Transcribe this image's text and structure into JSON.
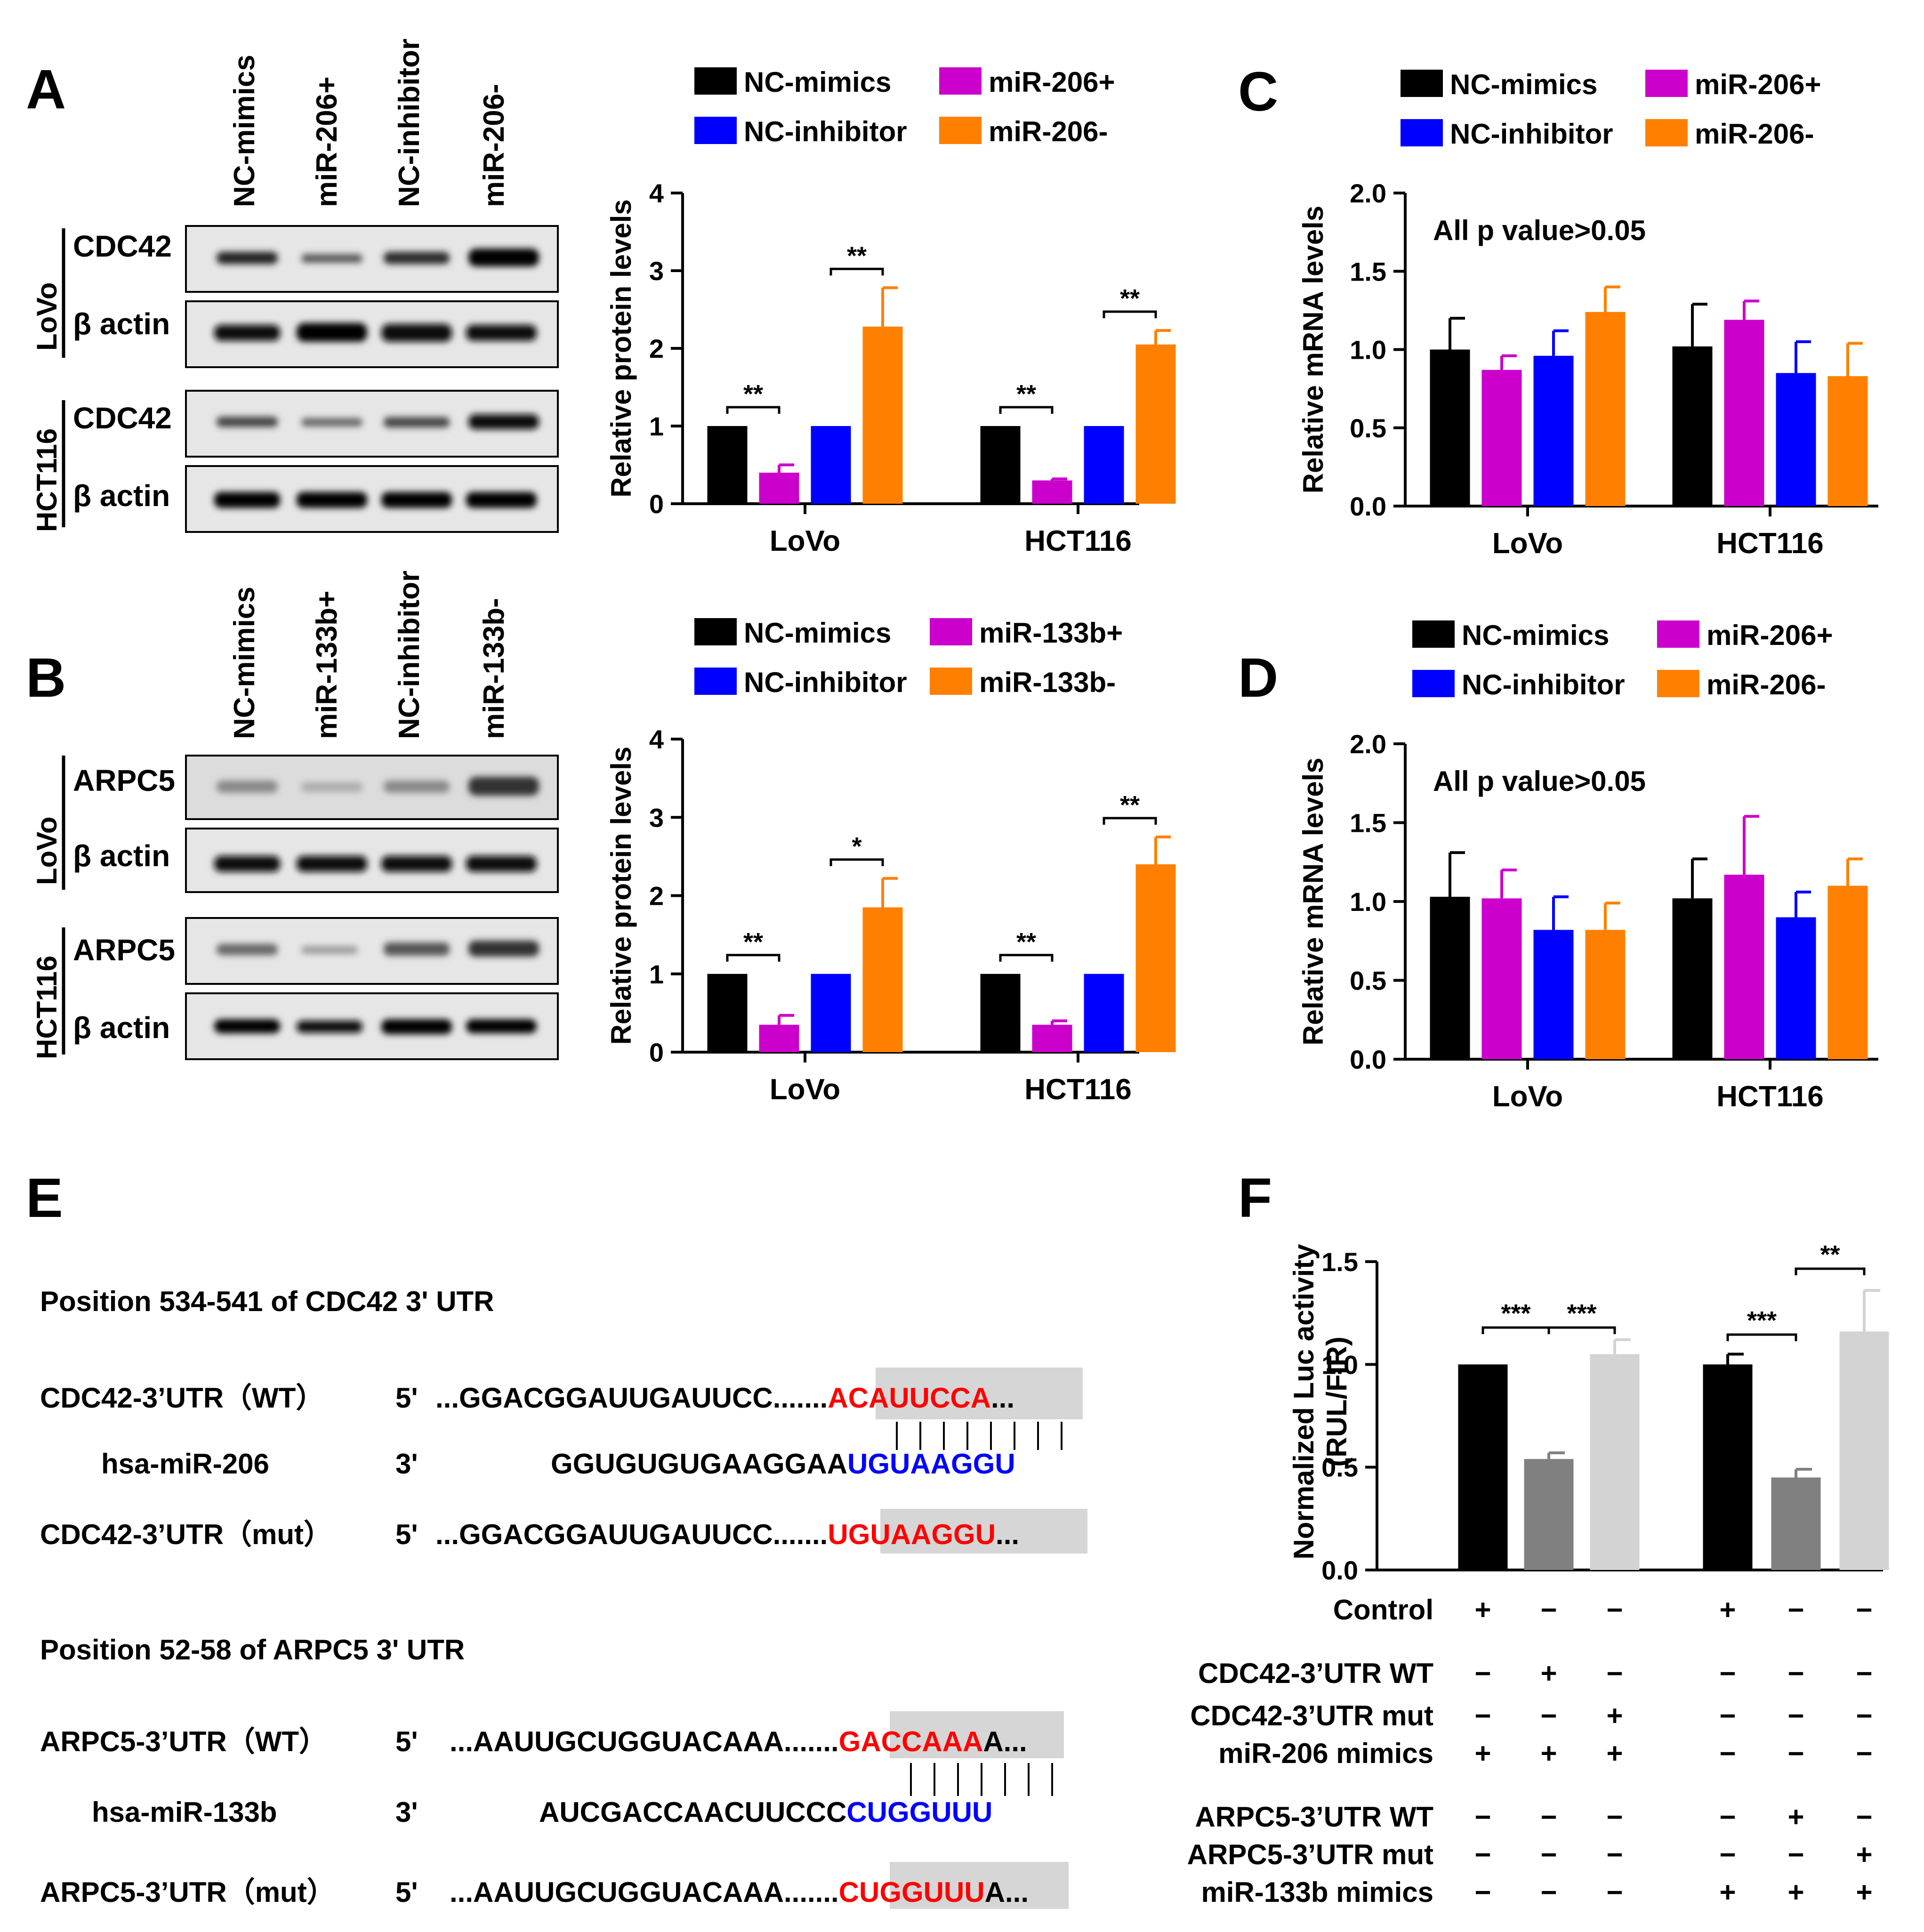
{
  "panels": {
    "A": {
      "letter": "A",
      "lanes": [
        "NC-mimics",
        "miR-206+",
        "NC-inhibitor",
        "miR-206-"
      ],
      "cells": [
        "LoVo",
        "HCT116"
      ],
      "blots": [
        "CDC42",
        "β actin",
        "CDC42",
        "β actin"
      ]
    },
    "B": {
      "letter": "B",
      "lanes": [
        "NC-mimics",
        "miR-133b+",
        "NC-inhibitor",
        "miR-133b-"
      ],
      "cells": [
        "LoVo",
        "HCT116"
      ],
      "blots": [
        "ARPC5",
        "β actin",
        "ARPC5",
        "β actin"
      ]
    },
    "C": {
      "letter": "C",
      "note": "All p value>0.05"
    },
    "D": {
      "letter": "D",
      "note": "All p value>0.05"
    },
    "E": {
      "letter": "E"
    },
    "F": {
      "letter": "F"
    }
  },
  "colors": {
    "black": "#000000",
    "magenta": "#cc00cc",
    "blue": "#0000ff",
    "orange": "#ff8000",
    "dark_gray": "#808080",
    "light_gray": "#d3d3d3",
    "red": "#ff0000",
    "seq_blue": "#0000ff",
    "highlight": "#d6d6d6"
  },
  "chart_data": [
    {
      "id": "A-chart",
      "type": "bar",
      "categories": [
        "LoVo",
        "HCT116"
      ],
      "series": [
        {
          "name": "NC-mimics",
          "values": [
            1.0,
            1.0
          ],
          "err": [
            0,
            0
          ]
        },
        {
          "name": "miR-206+",
          "values": [
            0.4,
            0.3
          ],
          "err": [
            0.1,
            0.02
          ]
        },
        {
          "name": "NC-inhibitor",
          "values": [
            1.0,
            1.0
          ],
          "err": [
            0,
            0
          ]
        },
        {
          "name": "miR-206-",
          "values": [
            2.28,
            2.05
          ],
          "err": [
            0.5,
            0.18
          ]
        }
      ],
      "ylabel": "Relative protein levels",
      "ylim": [
        0,
        4
      ],
      "yticks": [
        "0",
        "1",
        "2",
        "3",
        "4"
      ],
      "sig": [
        [
          "**",
          "**"
        ],
        [
          "**",
          "**"
        ]
      ]
    },
    {
      "id": "B-chart",
      "type": "bar",
      "categories": [
        "LoVo",
        "HCT116"
      ],
      "series": [
        {
          "name": "NC-mimics",
          "values": [
            1.0,
            1.0
          ],
          "err": [
            0,
            0
          ]
        },
        {
          "name": "miR-133b+",
          "values": [
            0.35,
            0.35
          ],
          "err": [
            0.12,
            0.05
          ]
        },
        {
          "name": "NC-inhibitor",
          "values": [
            1.0,
            1.0
          ],
          "err": [
            0,
            0
          ]
        },
        {
          "name": "miR-133b-",
          "values": [
            1.85,
            2.4
          ],
          "err": [
            0.37,
            0.35
          ]
        }
      ],
      "ylabel": "Relative protein levels",
      "ylim": [
        0,
        4
      ],
      "yticks": [
        "0",
        "1",
        "2",
        "3",
        "4"
      ],
      "sig": [
        [
          "**",
          "*"
        ],
        [
          "**",
          "**"
        ]
      ]
    },
    {
      "id": "C-chart",
      "type": "bar",
      "categories": [
        "LoVo",
        "HCT116"
      ],
      "series": [
        {
          "name": "NC-mimics",
          "values": [
            1.0,
            1.02
          ],
          "err": [
            0.2,
            0.27
          ]
        },
        {
          "name": "miR-206+",
          "values": [
            0.87,
            1.19
          ],
          "err": [
            0.09,
            0.12
          ]
        },
        {
          "name": "NC-inhibitor",
          "values": [
            0.96,
            0.85
          ],
          "err": [
            0.16,
            0.2
          ]
        },
        {
          "name": "miR-206-",
          "values": [
            1.24,
            0.83
          ],
          "err": [
            0.16,
            0.21
          ]
        }
      ],
      "ylabel": "Relative mRNA levels",
      "ylim": [
        0,
        2.0
      ],
      "yticks": [
        "0.0",
        "0.5",
        "1.0",
        "1.5",
        "2.0"
      ]
    },
    {
      "id": "D-chart",
      "type": "bar",
      "categories": [
        "LoVo",
        "HCT116"
      ],
      "series": [
        {
          "name": "NC-mimics",
          "values": [
            1.03,
            1.02
          ],
          "err": [
            0.28,
            0.25
          ]
        },
        {
          "name": "miR-206+",
          "values": [
            1.02,
            1.17
          ],
          "err": [
            0.18,
            0.37
          ]
        },
        {
          "name": "NC-inhibitor",
          "values": [
            0.82,
            0.9
          ],
          "err": [
            0.21,
            0.16
          ]
        },
        {
          "name": "miR-206-",
          "values": [
            0.82,
            1.1
          ],
          "err": [
            0.17,
            0.17
          ]
        }
      ],
      "ylabel": "Relative mRNA levels",
      "ylim": [
        0,
        2.0
      ],
      "yticks": [
        "0.0",
        "0.5",
        "1.0",
        "1.5",
        "2.0"
      ]
    },
    {
      "id": "F-chart",
      "type": "bar",
      "categories": [
        "1",
        "2",
        "3",
        "4",
        "5",
        "6"
      ],
      "values": [
        1.0,
        0.54,
        1.05,
        1.0,
        0.45,
        1.16
      ],
      "err": [
        0.005,
        0.03,
        0.07,
        0.05,
        0.04,
        0.2
      ],
      "ylabel": "Normalized Luc activity\n(RUL/FIR)",
      "ylim": [
        0,
        1.5
      ],
      "yticks": [
        "0.0",
        "0.5",
        "1.0",
        "1.5"
      ],
      "sig": [
        "***",
        "***",
        "***",
        "**"
      ],
      "conditions": [
        {
          "label": "Control",
          "marks": [
            "+",
            "−",
            "−",
            "+",
            "−",
            "−"
          ]
        },
        {
          "label": "CDC42-3’UTR WT",
          "marks": [
            "−",
            "+",
            "−",
            "−",
            "−",
            "−"
          ]
        },
        {
          "label": "CDC42-3’UTR mut",
          "marks": [
            "−",
            "−",
            "+",
            "−",
            "−",
            "−"
          ]
        },
        {
          "label": "miR-206 mimics",
          "marks": [
            "+",
            "+",
            "+",
            "−",
            "−",
            "−"
          ]
        },
        {
          "label": "ARPC5-3’UTR WT",
          "marks": [
            "−",
            "−",
            "−",
            "−",
            "+",
            "−"
          ]
        },
        {
          "label": "ARPC5-3’UTR mut",
          "marks": [
            "−",
            "−",
            "−",
            "−",
            "−",
            "+"
          ]
        },
        {
          "label": "miR-133b mimics",
          "marks": [
            "−",
            "−",
            "−",
            "+",
            "+",
            "+"
          ]
        }
      ]
    }
  ],
  "seq": {
    "cdc_title": "Position 534-541 of CDC42 3' UTR",
    "cdc_wt_label": "CDC42-3’UTR（WT）",
    "cdc_wt_dir": "5'",
    "cdc_wt_pre": "...GGACGGAUUGAUUCC.......",
    "cdc_wt_hl": "ACAUUCCA",
    "cdc_wt_post": "...",
    "mir206_label": "hsa-miR-206",
    "mir206_dir": "3'",
    "mir206_pre": "GGUGUGUGAAGGAA",
    "mir206_hl": "UGUAAGGU",
    "cdc_mut_label": "CDC42-3’UTR（mut）",
    "cdc_mut_dir": "5'",
    "cdc_mut_pre": "...GGACGGAUUGAUUCC.......",
    "cdc_mut_hl": "UGUAAGGU",
    "cdc_mut_post": "...",
    "arp_title": "Position 52-58 of ARPC5 3' UTR",
    "arp_wt_label": "ARPC5-3’UTR（WT）",
    "arp_wt_dir": "5'",
    "arp_wt_pre": "...AAUUGCUGGUACAAA.......",
    "arp_wt_hl": "GACCAAA",
    "arp_wt_post": "A...",
    "mir133_label": "hsa-miR-133b",
    "mir133_dir": "3'",
    "mir133_pre": "AUCGACCAACUUCCC",
    "mir133_hl": "CUGGUUU",
    "arp_mut_label": "ARPC5-3’UTR（mut）",
    "arp_mut_dir": "5'",
    "arp_mut_pre": "...AAUUGCUGGUACAAA.......",
    "arp_mut_hl": "CUGGUUU",
    "arp_mut_post": "A..."
  }
}
